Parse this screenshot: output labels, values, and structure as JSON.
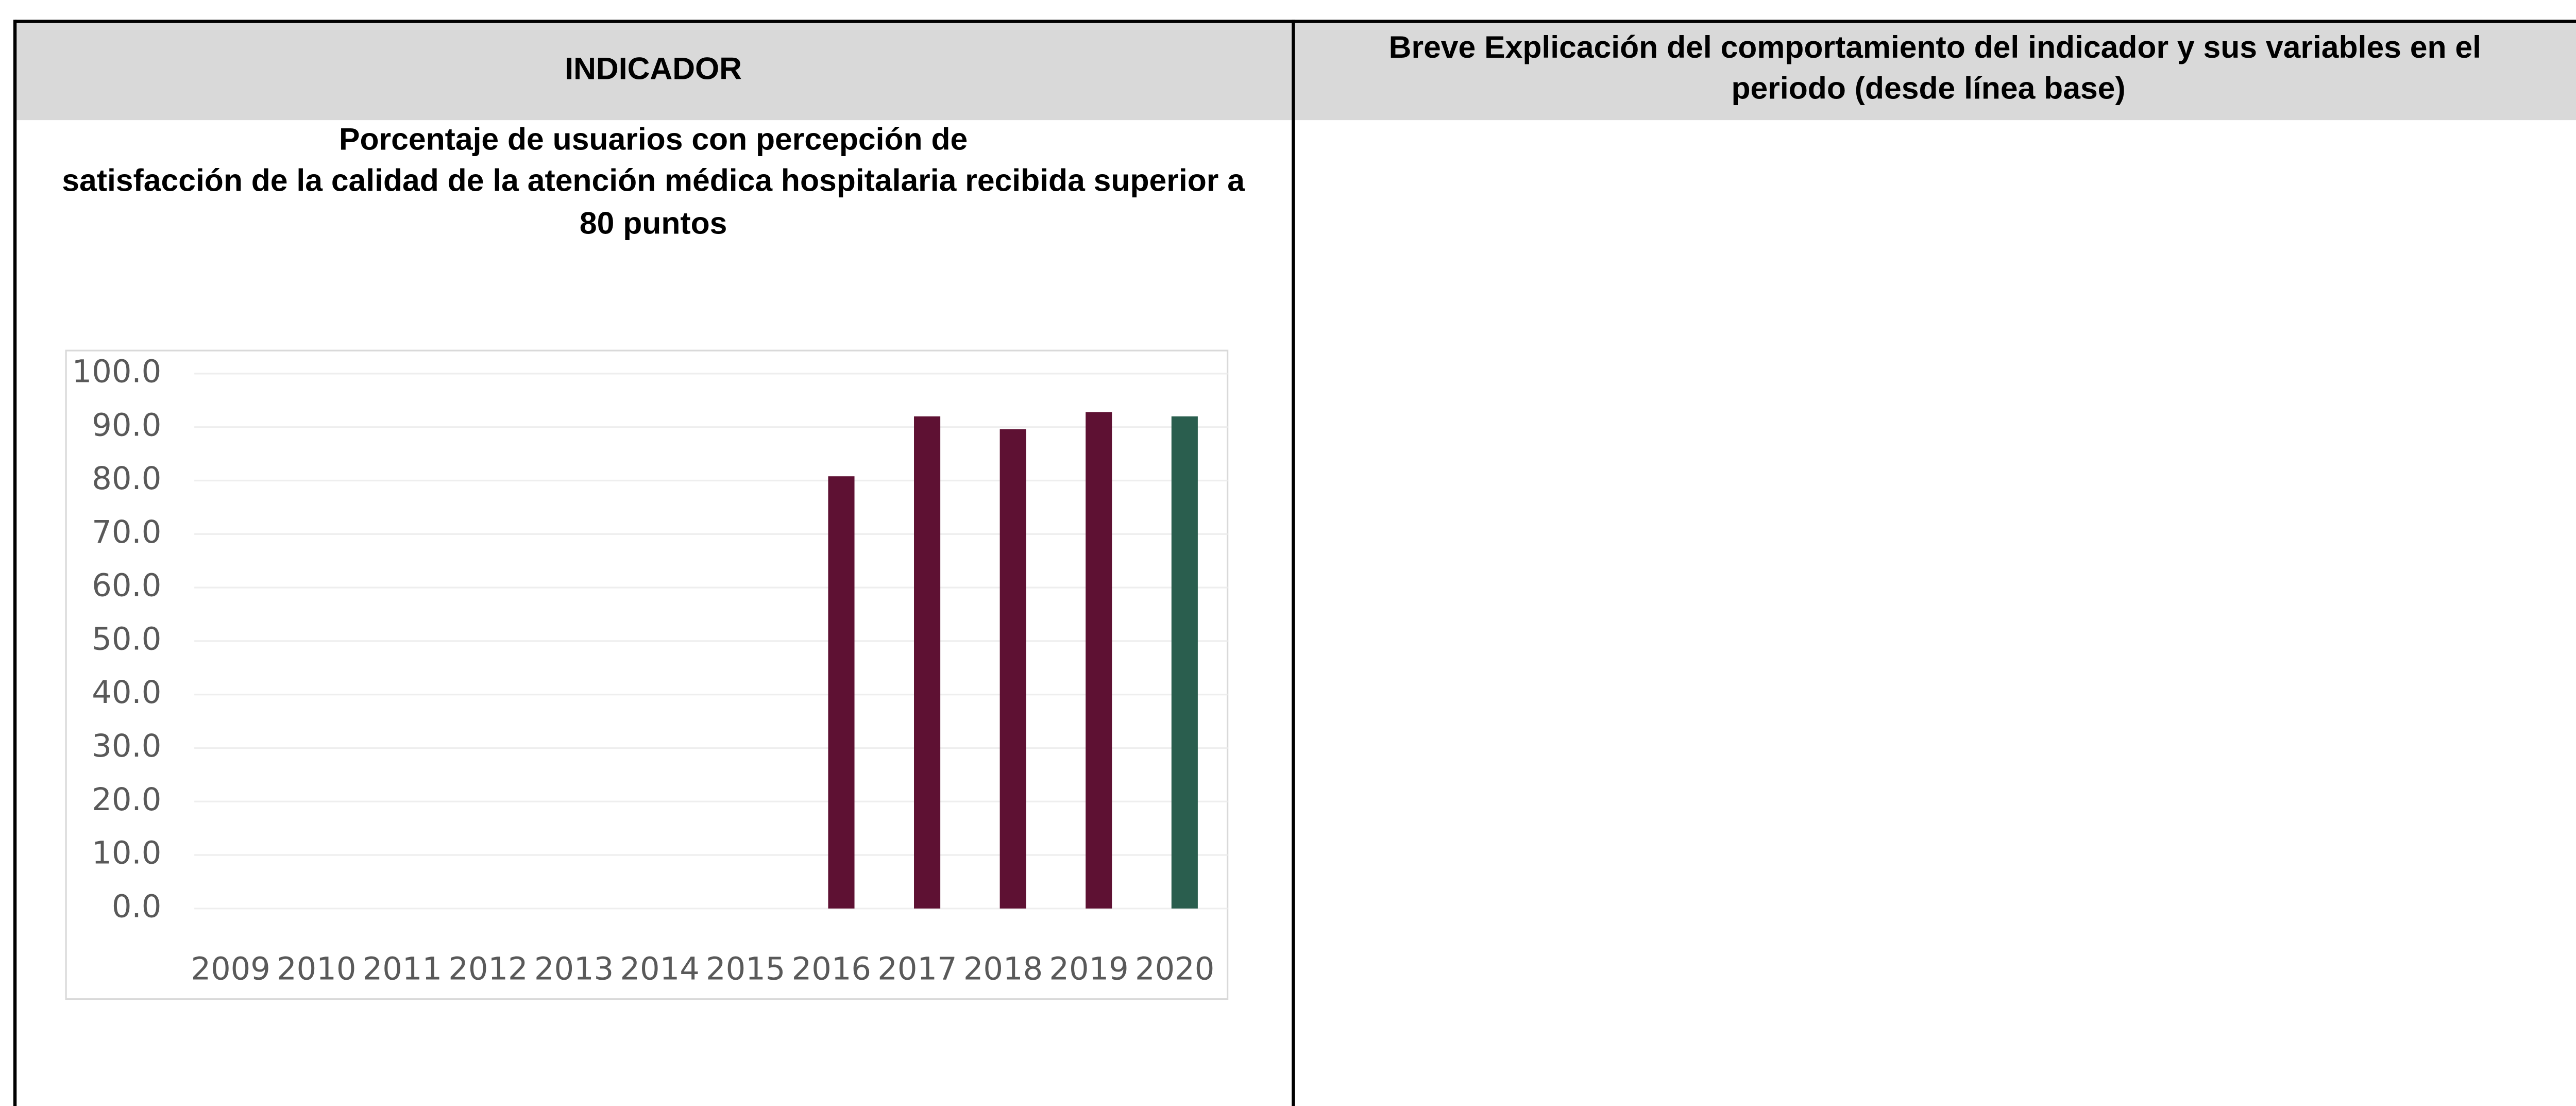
{
  "table": {
    "headers": [
      "INDICADOR",
      [
        "Breve Explicación del comportamiento del indicador y sus variables en el",
        "periodo (desde línea base)"
      ]
    ],
    "indicator_title": [
      "Porcentaje de usuarios con percepción de",
      "satisfacción de la calidad de la atención médica hospitalaria recibida superior a",
      "80 puntos"
    ]
  },
  "chart_data": {
    "type": "bar",
    "categories": [
      "2009",
      "2010",
      "2011",
      "2012",
      "2013",
      "2014",
      "2015",
      "2016",
      "2017",
      "2018",
      "2019",
      "2020"
    ],
    "values": [
      null,
      null,
      null,
      null,
      null,
      null,
      null,
      80.8,
      92.0,
      89.6,
      92.8,
      92.0
    ],
    "colors": [
      null,
      null,
      null,
      null,
      null,
      null,
      null,
      "#5e1133",
      "#5e1133",
      "#5e1133",
      "#5e1133",
      "#2a5e4e"
    ],
    "ylim": [
      0,
      100
    ],
    "yticks": [
      {
        "value": 0,
        "label": "0.0"
      },
      {
        "value": 10,
        "label": "10.0"
      },
      {
        "value": 20,
        "label": "20.0"
      },
      {
        "value": 30,
        "label": "30.0"
      },
      {
        "value": 40,
        "label": "40.0"
      },
      {
        "value": 50,
        "label": "50.0"
      },
      {
        "value": 60,
        "label": "60.0"
      },
      {
        "value": 70,
        "label": "70.0"
      },
      {
        "value": 80,
        "label": "80.0"
      },
      {
        "value": 90,
        "label": "90.0"
      },
      {
        "value": 100,
        "label": "100.0"
      }
    ],
    "grid": true
  }
}
